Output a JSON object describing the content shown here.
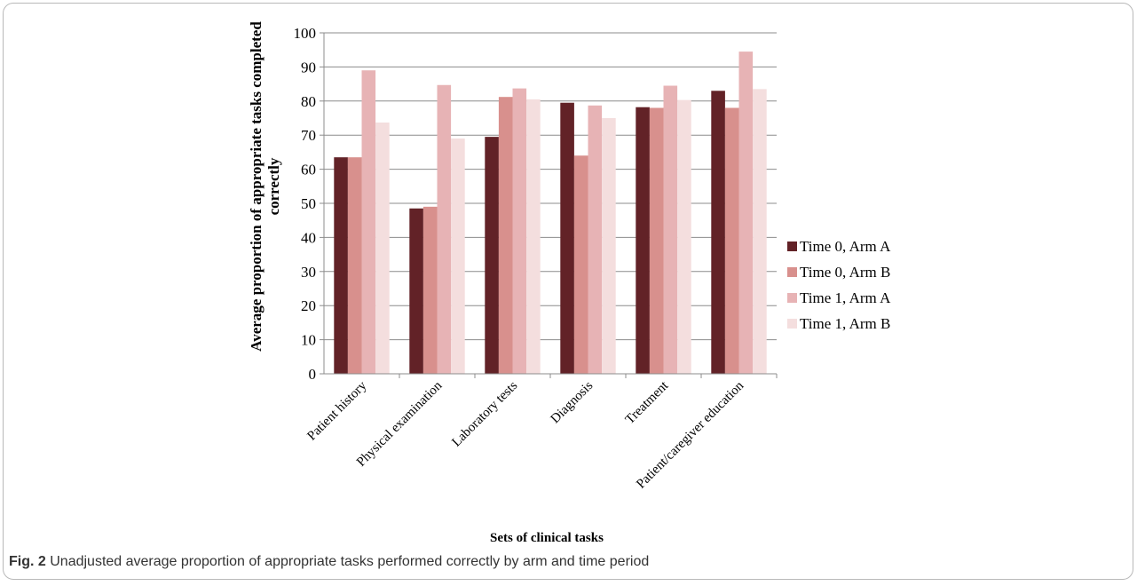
{
  "chart_data": {
    "type": "bar",
    "title": "",
    "xlabel": "Sets of clinical tasks",
    "ylabel_lines": [
      "Average proportion of appropriate tasks completed",
      "correctly"
    ],
    "ylim": [
      0,
      100
    ],
    "ytick_step": 10,
    "grid": "horizontal",
    "legend_position": "right",
    "categories": [
      "Patient history",
      "Physical examination",
      "Laboratory tests",
      "Diagnosis",
      "Treatment",
      "Patient/caregiver education"
    ],
    "series": [
      {
        "name": "Time 0, Arm A",
        "color": "#622227",
        "values": [
          63.5,
          48.5,
          69.5,
          79.5,
          78.2,
          83.0
        ]
      },
      {
        "name": "Time 0, Arm B",
        "color": "#d8908d",
        "values": [
          63.5,
          49.0,
          81.2,
          64.0,
          78.0,
          78.0
        ]
      },
      {
        "name": "Time 1, Arm A",
        "color": "#e7b3b5",
        "values": [
          89.0,
          84.7,
          83.7,
          78.7,
          84.5,
          94.5
        ]
      },
      {
        "name": "Time 1, Arm B",
        "color": "#f4dede",
        "values": [
          73.7,
          69.0,
          80.5,
          75.0,
          80.3,
          83.5
        ]
      }
    ]
  },
  "caption": {
    "label": "Fig. 2",
    "text": "Unadjusted average proportion of appropriate tasks performed correctly by arm and time period"
  }
}
